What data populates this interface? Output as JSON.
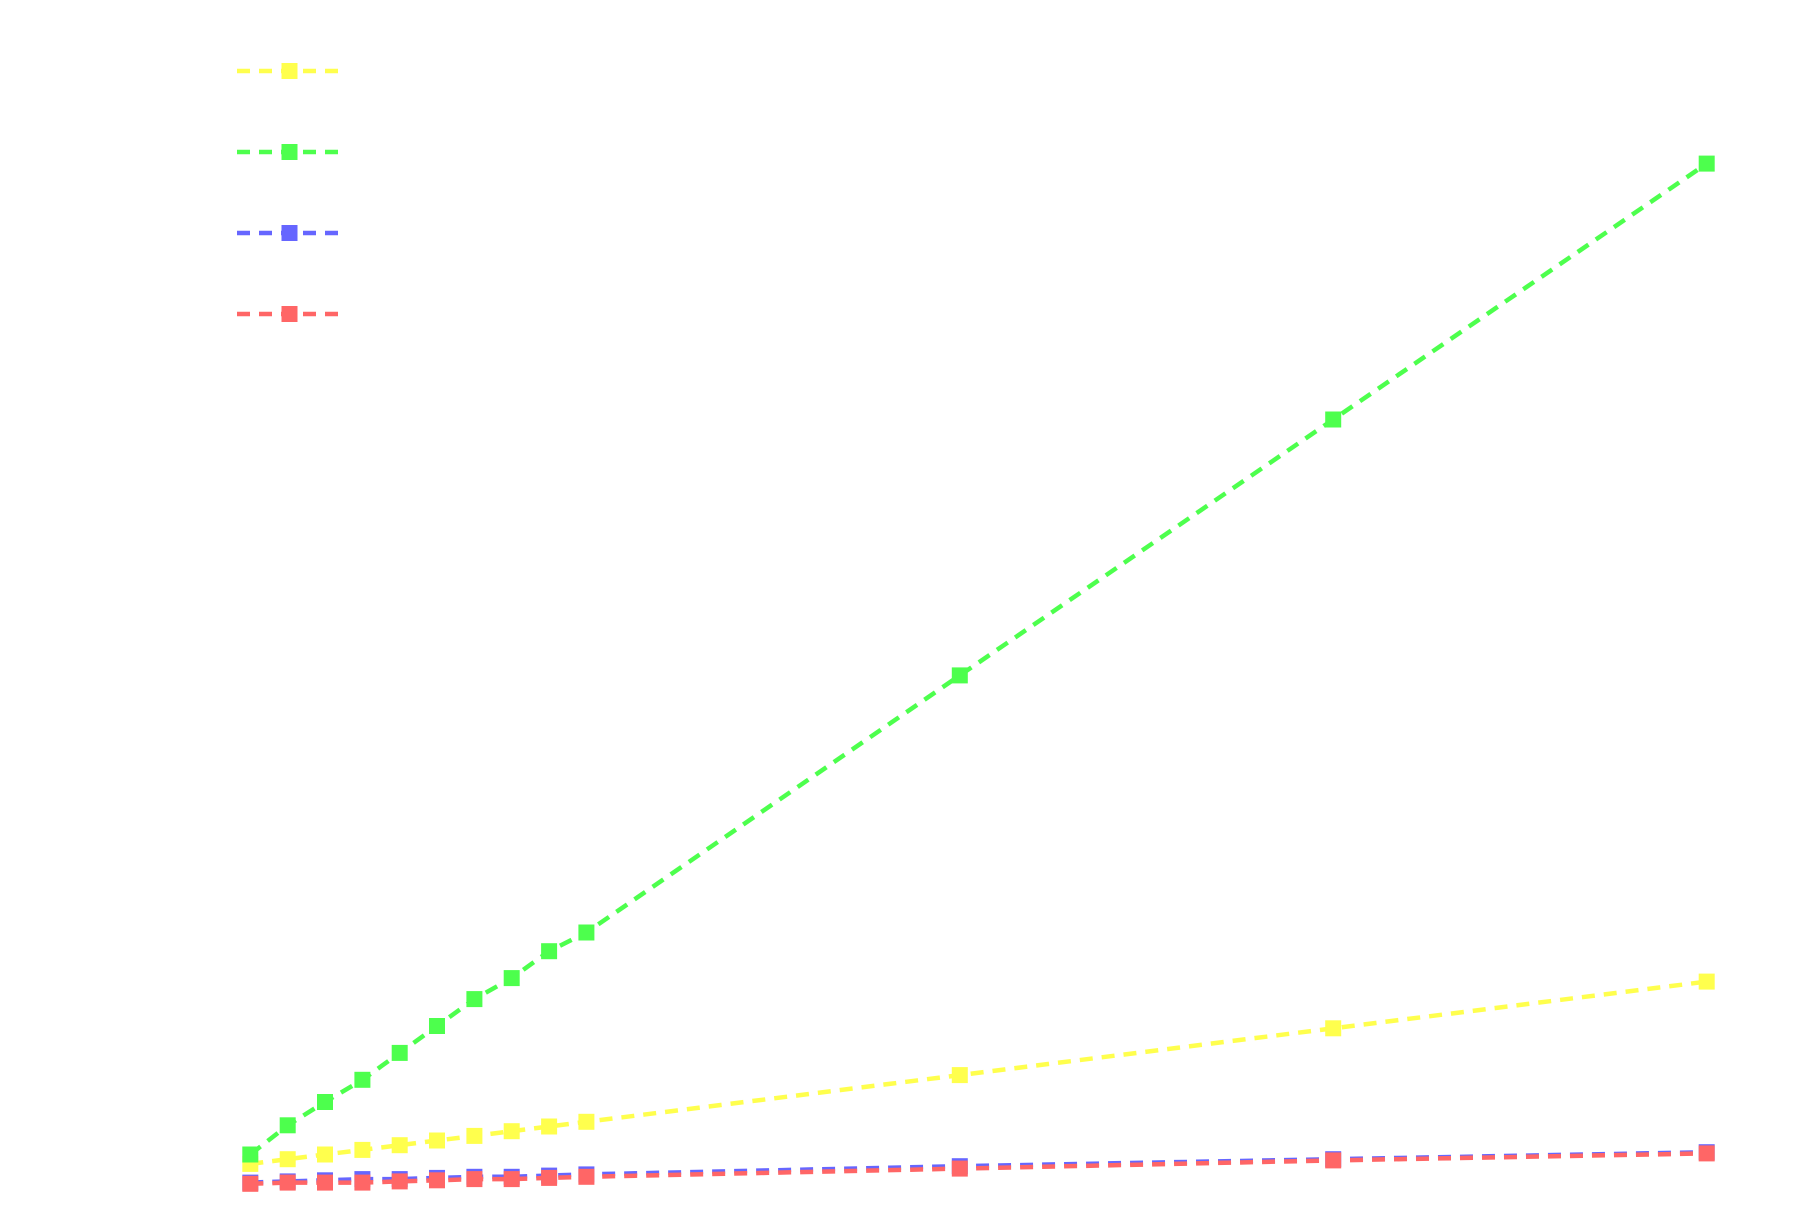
{
  "chart_data": {
    "type": "line",
    "title": "",
    "xlabel": "",
    "ylabel": "",
    "grid": false,
    "legend_location": "top-left",
    "line_style": "dashed",
    "marker": "square",
    "x": [
      1,
      2,
      3,
      4,
      5,
      6,
      7,
      8,
      9,
      10,
      20,
      30,
      40
    ],
    "xlim": [
      0,
      41
    ],
    "ylim": [
      -50,
      1000
    ],
    "series": [
      {
        "name": "",
        "color": "#ffff4d",
        "values": [
          4,
          8,
          12,
          16,
          20,
          24,
          28,
          32,
          36,
          40,
          80,
          120,
          160
        ]
      },
      {
        "name": "",
        "color": "#4dff4d",
        "values": [
          12,
          37,
          57,
          76,
          99,
          122,
          145,
          163,
          186,
          202,
          422,
          641,
          860
        ]
      },
      {
        "name": "",
        "color": "#6666ff",
        "values": [
          -12,
          -11,
          -10,
          -9,
          -9,
          -8,
          -7,
          -7,
          -6,
          -5,
          2,
          8,
          14
        ]
      },
      {
        "name": "",
        "color": "#ff6666",
        "values": [
          -13,
          -12,
          -12,
          -12,
          -11,
          -10,
          -9,
          -9,
          -8,
          -7,
          0,
          7,
          13
        ]
      }
    ]
  }
}
